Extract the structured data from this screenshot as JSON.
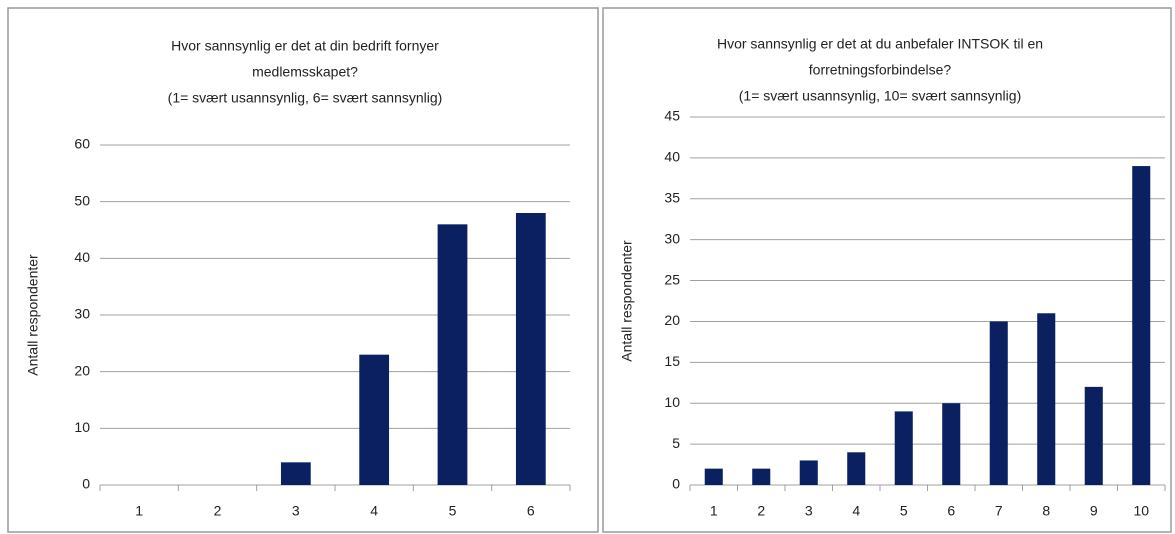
{
  "chart_data": [
    {
      "type": "bar",
      "title": [
        "Hvor sannsynlig er det at din bedrift fornyer",
        "medlemsskapet?",
        "(1= svært usannsynlig, 6= svært sannsynlig)"
      ],
      "y_label": "Antall respondenter",
      "categories": [
        "1",
        "2",
        "3",
        "4",
        "5",
        "6"
      ],
      "values": [
        0,
        0,
        4,
        23,
        46,
        48
      ],
      "color": "#0b2060",
      "ylim": [
        0,
        60
      ],
      "yticks": [
        0,
        10,
        20,
        30,
        40,
        50,
        60
      ],
      "grid": true
    },
    {
      "type": "bar",
      "title": [
        "Hvor sannsynlig er det at du anbefaler INTSOK til en",
        "forretningsforbindelse?",
        "(1= svært usannsynlig, 10= svært sannsynlig)"
      ],
      "y_label": "Antall respondenter",
      "categories": [
        "1",
        "2",
        "3",
        "4",
        "5",
        "6",
        "7",
        "8",
        "9",
        "10"
      ],
      "values": [
        2,
        2,
        3,
        4,
        9,
        10,
        20,
        21,
        12,
        39
      ],
      "color": "#0b2060",
      "ylim": [
        0,
        45
      ],
      "yticks": [
        0,
        5,
        10,
        15,
        20,
        25,
        30,
        35,
        40,
        45
      ],
      "grid": true
    }
  ]
}
